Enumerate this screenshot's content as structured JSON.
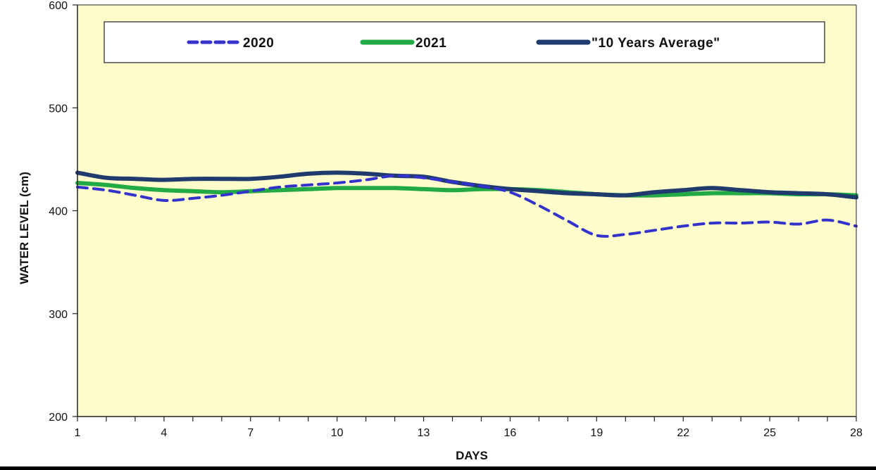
{
  "chart_data": {
    "type": "line",
    "xlabel": "DAYS",
    "ylabel": "WATER LEVEL (cm)",
    "xlim": [
      1,
      28
    ],
    "ylim": [
      200,
      600
    ],
    "y_ticks": [
      200,
      300,
      400,
      500,
      600
    ],
    "x_tick_labels": [
      "1",
      "4",
      "7",
      "10",
      "13",
      "16",
      "19",
      "22",
      "25",
      "28"
    ],
    "grid": false,
    "legend_position": "top",
    "plot_background": "#FFFDCC",
    "series": [
      {
        "name": "2020",
        "color": "#3333CC",
        "style": "dashed",
        "x": [
          1,
          2,
          3,
          4,
          5,
          6,
          7,
          8,
          9,
          10,
          11,
          12,
          13,
          14,
          15,
          16,
          17,
          18,
          19,
          20,
          21,
          22,
          23,
          24,
          25,
          26,
          27,
          28
        ],
        "values": [
          423,
          420,
          415,
          410,
          412,
          415,
          419,
          423,
          425,
          427,
          430,
          434,
          432,
          428,
          424,
          418,
          405,
          390,
          376,
          377,
          381,
          385,
          388,
          388,
          389,
          387,
          391,
          385
        ]
      },
      {
        "name": "2021",
        "color": "#22AA44",
        "style": "solid",
        "x": [
          1,
          2,
          3,
          4,
          5,
          6,
          7,
          8,
          9,
          10,
          11,
          12,
          13,
          14,
          15,
          16,
          17,
          18,
          19,
          20,
          21,
          22,
          23,
          24,
          25,
          26,
          27,
          28
        ],
        "values": [
          427,
          425,
          422,
          420,
          419,
          418,
          419,
          420,
          421,
          422,
          422,
          422,
          421,
          420,
          421,
          421,
          420,
          418,
          416,
          415,
          415,
          416,
          417,
          417,
          417,
          416,
          416,
          415
        ]
      },
      {
        "name": "\"10 Years Average\"",
        "color": "#1F3B6E",
        "style": "solid",
        "x": [
          1,
          2,
          3,
          4,
          5,
          6,
          7,
          8,
          9,
          10,
          11,
          12,
          13,
          14,
          15,
          16,
          17,
          18,
          19,
          20,
          21,
          22,
          23,
          24,
          25,
          26,
          27,
          28
        ],
        "values": [
          437,
          432,
          431,
          430,
          431,
          431,
          431,
          433,
          436,
          437,
          436,
          434,
          433,
          428,
          424,
          421,
          419,
          417,
          416,
          415,
          418,
          420,
          422,
          420,
          418,
          417,
          416,
          413
        ]
      }
    ]
  }
}
